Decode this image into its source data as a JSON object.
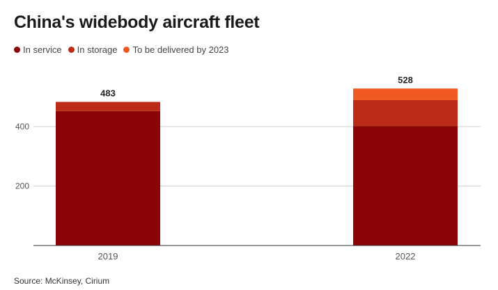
{
  "title": "China's widebody aircraft fleet",
  "source": "Source: McKinsey, Cirium",
  "legend": [
    {
      "label": "In service",
      "color": "#8b0507"
    },
    {
      "label": "In storage",
      "color": "#bc2b16"
    },
    {
      "label": "To be delivered by 2023",
      "color": "#f05a22"
    }
  ],
  "chart_data": {
    "type": "bar",
    "stacked": true,
    "categories": [
      "2019",
      "2022"
    ],
    "series": [
      {
        "name": "In service",
        "values": [
          452,
          402
        ],
        "color": "#8b0507"
      },
      {
        "name": "In storage",
        "values": [
          31,
          87
        ],
        "color": "#bc2b16"
      },
      {
        "name": "To be delivered by 2023",
        "values": [
          0,
          39
        ],
        "color": "#f05a22"
      }
    ],
    "totals": [
      "483",
      "528"
    ],
    "y_ticks": [
      200,
      400
    ],
    "ylim": [
      0,
      600
    ],
    "grid": true,
    "legend_position": "top-left"
  }
}
